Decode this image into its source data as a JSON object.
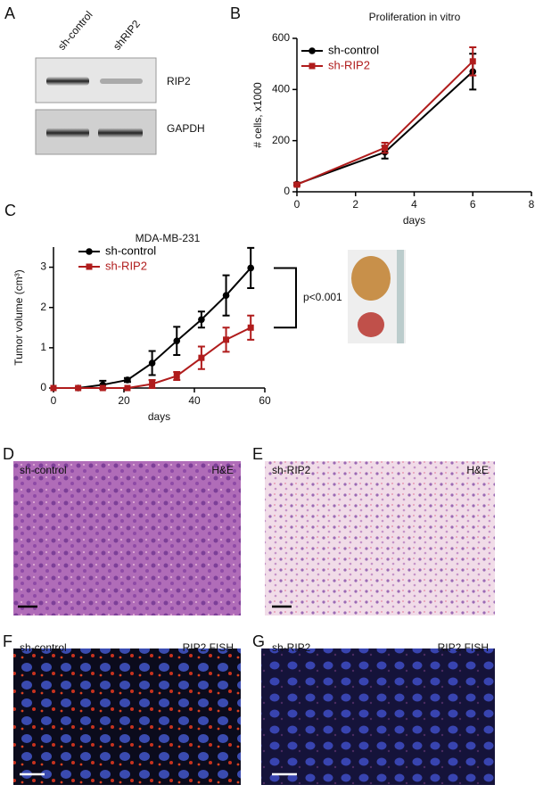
{
  "panels": {
    "letters": [
      "A",
      "B",
      "C",
      "D",
      "E",
      "F",
      "G"
    ],
    "blot": {
      "lanes": [
        "sh-control",
        "shRIP2"
      ],
      "bands": [
        "RIP2",
        "GAPDH"
      ]
    },
    "micrographs": [
      {
        "condition": "sh-control",
        "stain": "H&E"
      },
      {
        "condition": "sh-RIP2",
        "stain": "H&E"
      },
      {
        "condition": "sh-control",
        "stain": "RIP2 FISH"
      },
      {
        "condition": "sh-RIP2",
        "stain": "RIP2 FISH"
      }
    ]
  },
  "chart_data": [
    {
      "type": "line",
      "title": "Proliferation in vitro",
      "xlabel": "days",
      "ylabel": "# cells, x1000",
      "x": [
        0,
        3,
        6
      ],
      "xlim": [
        0,
        8
      ],
      "xticks": [
        0,
        2,
        4,
        6,
        8
      ],
      "ylim": [
        0,
        600
      ],
      "yticks": [
        0,
        200,
        400,
        600
      ],
      "legend": "upper left",
      "series": [
        {
          "name": "sh-control",
          "color": "#000000",
          "marker": "circle",
          "values": [
            30,
            155,
            470
          ],
          "errors": [
            5,
            25,
            70
          ]
        },
        {
          "name": "sh-RIP2",
          "color": "#b01c1c",
          "marker": "square",
          "values": [
            28,
            172,
            510
          ],
          "errors": [
            5,
            20,
            55
          ]
        }
      ]
    },
    {
      "type": "line",
      "title": "MDA-MB-231",
      "xlabel": "days",
      "ylabel": "Tumor volume (cm³)",
      "x": [
        0,
        7,
        14,
        21,
        28,
        35,
        42,
        49,
        56
      ],
      "xlim": [
        0,
        60
      ],
      "xticks": [
        0,
        20,
        40,
        60
      ],
      "ylim": [
        0,
        3.5
      ],
      "yticks": [
        0,
        1,
        2,
        3
      ],
      "legend": "upper left",
      "annotations": [
        "p<0.001"
      ],
      "series": [
        {
          "name": "sh-control",
          "color": "#000000",
          "marker": "circle",
          "values": [
            0,
            0,
            0.08,
            0.2,
            0.62,
            1.17,
            1.7,
            2.3,
            2.98
          ],
          "errors": [
            0,
            0,
            0.1,
            0.05,
            0.3,
            0.35,
            0.2,
            0.5,
            0.5
          ]
        },
        {
          "name": "sh-RIP2",
          "color": "#b01c1c",
          "marker": "square",
          "values": [
            0,
            0,
            0,
            0,
            0.1,
            0.3,
            0.75,
            1.2,
            1.5
          ],
          "errors": [
            0,
            0,
            0,
            0,
            0.1,
            0.1,
            0.28,
            0.3,
            0.3
          ]
        }
      ]
    }
  ]
}
